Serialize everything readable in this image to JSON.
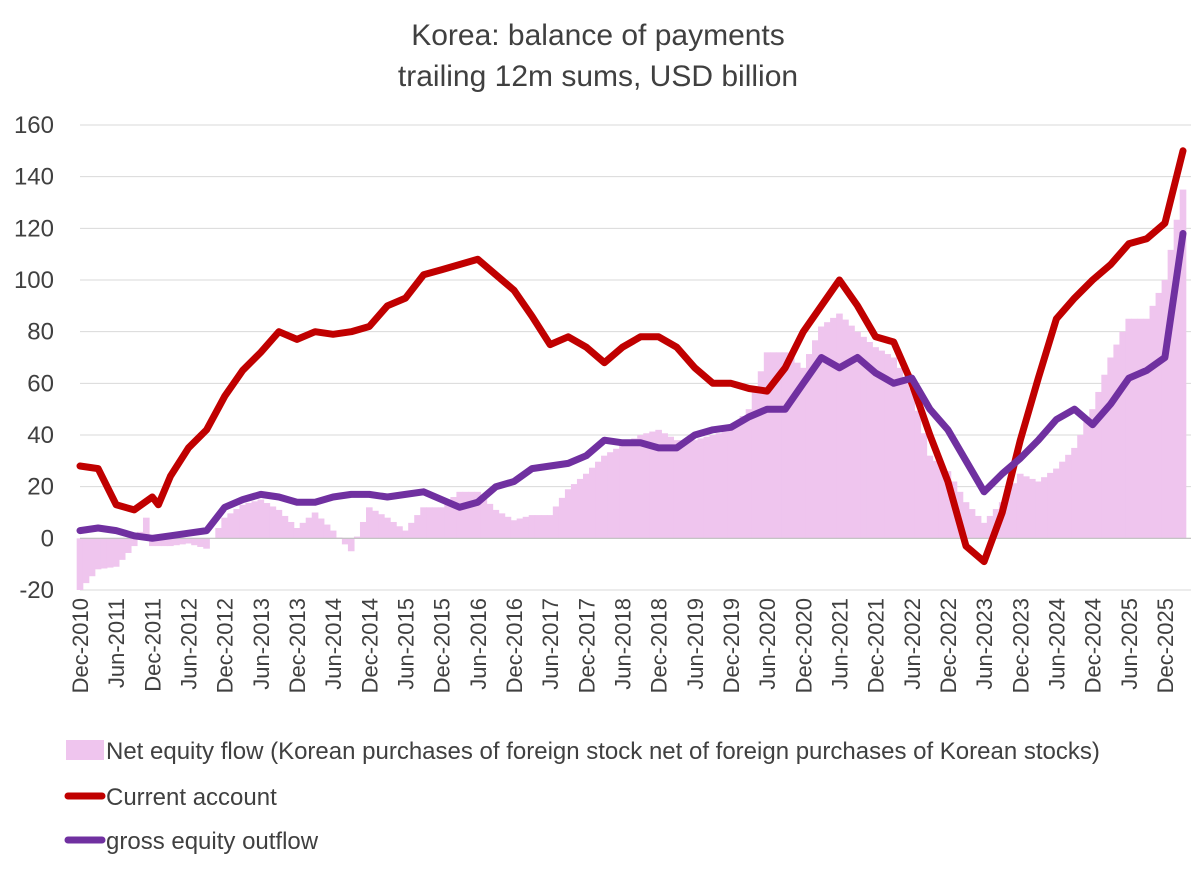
{
  "chart_data": {
    "type": "line",
    "title": "Korea: balance of payments",
    "subtitle": "trailing 12m sums, USD billion",
    "xlabel": "",
    "ylabel": "",
    "ylim": [
      -20,
      160
    ],
    "yticks": [
      "160",
      "140",
      "120",
      "100",
      "80",
      "60",
      "40",
      "20",
      "0",
      "-20"
    ],
    "grid": true,
    "legend_position": "bottom",
    "x_start": "Dec-2010",
    "x_end": "Mar-2026",
    "x_tick_labels": [
      "Dec-2010",
      "Jun-2011",
      "Dec-2011",
      "Jun-2012",
      "Dec-2012",
      "Jun-2013",
      "Dec-2013",
      "Jun-2014",
      "Dec-2014",
      "Jun-2015",
      "Dec-2015",
      "Jun-2016",
      "Dec-2016",
      "Jun-2017",
      "Dec-2017",
      "Jun-2018",
      "Dec-2018",
      "Jun-2019",
      "Dec-2019",
      "Jun-2020",
      "Dec-2020",
      "Jun-2021",
      "Dec-2021",
      "Jun-2022",
      "Dec-2022",
      "Jun-2023",
      "Dec-2023",
      "Jun-2024",
      "Dec-2024",
      "Jun-2025",
      "Dec-2025"
    ],
    "series": [
      {
        "name": "Net equity flow (Korean purchases of foreign stock net of foreign purchases of Korean stocks)",
        "type": "area",
        "color": "#efc5ee",
        "points": [
          [
            "Dec-2010",
            -20
          ],
          [
            "Mar-2011",
            -12
          ],
          [
            "Jun-2011",
            -11
          ],
          [
            "Sep-2011",
            -3
          ],
          [
            "Nov-2011",
            8
          ],
          [
            "Dec-2011",
            -3
          ],
          [
            "Mar-2012",
            -3
          ],
          [
            "Jun-2012",
            -2
          ],
          [
            "Sep-2012",
            -4
          ],
          [
            "Dec-2012",
            8
          ],
          [
            "Mar-2013",
            13
          ],
          [
            "Jun-2013",
            15
          ],
          [
            "Sep-2013",
            11
          ],
          [
            "Dec-2013",
            4
          ],
          [
            "Mar-2014",
            10
          ],
          [
            "Jun-2014",
            3
          ],
          [
            "Sep-2014",
            -5
          ],
          [
            "Dec-2014",
            12
          ],
          [
            "Mar-2015",
            8
          ],
          [
            "Jun-2015",
            3
          ],
          [
            "Sep-2015",
            12
          ],
          [
            "Dec-2015",
            12
          ],
          [
            "Mar-2016",
            18
          ],
          [
            "Jun-2016",
            18
          ],
          [
            "Sep-2016",
            11
          ],
          [
            "Dec-2016",
            7
          ],
          [
            "Mar-2017",
            9
          ],
          [
            "Jun-2017",
            9
          ],
          [
            "Sep-2017",
            19
          ],
          [
            "Dec-2017",
            25
          ],
          [
            "Mar-2018",
            32
          ],
          [
            "Jun-2018",
            36
          ],
          [
            "Sep-2018",
            40
          ],
          [
            "Dec-2018",
            42
          ],
          [
            "Mar-2019",
            38
          ],
          [
            "Jun-2019",
            38
          ],
          [
            "Sep-2019",
            40
          ],
          [
            "Dec-2019",
            42
          ],
          [
            "Mar-2020",
            50
          ],
          [
            "Jun-2020",
            72
          ],
          [
            "Sep-2020",
            72
          ],
          [
            "Dec-2020",
            66
          ],
          [
            "Mar-2021",
            82
          ],
          [
            "Jun-2021",
            87
          ],
          [
            "Sep-2021",
            80
          ],
          [
            "Dec-2021",
            74
          ],
          [
            "Mar-2022",
            70
          ],
          [
            "Jun-2022",
            58
          ],
          [
            "Sep-2022",
            32
          ],
          [
            "Dec-2022",
            26
          ],
          [
            "Mar-2023",
            14
          ],
          [
            "Jun-2023",
            6
          ],
          [
            "Sep-2023",
            14
          ],
          [
            "Dec-2023",
            25
          ],
          [
            "Mar-2024",
            22
          ],
          [
            "Jun-2024",
            27
          ],
          [
            "Sep-2024",
            35
          ],
          [
            "Dec-2024",
            50
          ],
          [
            "Mar-2025",
            70
          ],
          [
            "Jun-2025",
            85
          ],
          [
            "Sep-2025",
            85
          ],
          [
            "Dec-2025",
            100
          ],
          [
            "Mar-2026",
            135
          ]
        ]
      },
      {
        "name": "Current account",
        "type": "line",
        "color": "#c00000",
        "points": [
          [
            "Dec-2010",
            28
          ],
          [
            "Mar-2011",
            27
          ],
          [
            "Jun-2011",
            13
          ],
          [
            "Sep-2011",
            11
          ],
          [
            "Dec-2011",
            16
          ],
          [
            "Jan-2012",
            13
          ],
          [
            "Mar-2012",
            24
          ],
          [
            "Jun-2012",
            35
          ],
          [
            "Sep-2012",
            42
          ],
          [
            "Dec-2012",
            55
          ],
          [
            "Mar-2013",
            65
          ],
          [
            "Jun-2013",
            72
          ],
          [
            "Sep-2013",
            80
          ],
          [
            "Dec-2013",
            77
          ],
          [
            "Mar-2014",
            80
          ],
          [
            "Jun-2014",
            79
          ],
          [
            "Sep-2014",
            80
          ],
          [
            "Dec-2014",
            82
          ],
          [
            "Mar-2015",
            90
          ],
          [
            "Jun-2015",
            93
          ],
          [
            "Sep-2015",
            102
          ],
          [
            "Dec-2015",
            104
          ],
          [
            "Mar-2016",
            106
          ],
          [
            "Jun-2016",
            108
          ],
          [
            "Sep-2016",
            102
          ],
          [
            "Dec-2016",
            96
          ],
          [
            "Mar-2017",
            86
          ],
          [
            "Jun-2017",
            75
          ],
          [
            "Sep-2017",
            78
          ],
          [
            "Dec-2017",
            74
          ],
          [
            "Mar-2018",
            68
          ],
          [
            "Jun-2018",
            74
          ],
          [
            "Sep-2018",
            78
          ],
          [
            "Dec-2018",
            78
          ],
          [
            "Mar-2019",
            74
          ],
          [
            "Jun-2019",
            66
          ],
          [
            "Sep-2019",
            60
          ],
          [
            "Dec-2019",
            60
          ],
          [
            "Mar-2020",
            58
          ],
          [
            "Jun-2020",
            57
          ],
          [
            "Sep-2020",
            66
          ],
          [
            "Dec-2020",
            80
          ],
          [
            "Mar-2021",
            90
          ],
          [
            "Jun-2021",
            100
          ],
          [
            "Sep-2021",
            90
          ],
          [
            "Dec-2021",
            78
          ],
          [
            "Mar-2022",
            76
          ],
          [
            "Jun-2022",
            60
          ],
          [
            "Sep-2022",
            40
          ],
          [
            "Dec-2022",
            22
          ],
          [
            "Mar-2023",
            -3
          ],
          [
            "Jun-2023",
            -9
          ],
          [
            "Sep-2023",
            10
          ],
          [
            "Dec-2023",
            38
          ],
          [
            "Mar-2024",
            62
          ],
          [
            "Jun-2024",
            85
          ],
          [
            "Sep-2024",
            93
          ],
          [
            "Dec-2024",
            100
          ],
          [
            "Mar-2025",
            106
          ],
          [
            "Jun-2025",
            114
          ],
          [
            "Sep-2025",
            116
          ],
          [
            "Dec-2025",
            122
          ],
          [
            "Mar-2026",
            150
          ]
        ]
      },
      {
        "name": "gross equity outflow",
        "type": "line",
        "color": "#7030a0",
        "points": [
          [
            "Dec-2010",
            3
          ],
          [
            "Mar-2011",
            4
          ],
          [
            "Jun-2011",
            3
          ],
          [
            "Sep-2011",
            1
          ],
          [
            "Dec-2011",
            0
          ],
          [
            "Mar-2012",
            1
          ],
          [
            "Jun-2012",
            2
          ],
          [
            "Sep-2012",
            3
          ],
          [
            "Dec-2012",
            12
          ],
          [
            "Mar-2013",
            15
          ],
          [
            "Jun-2013",
            17
          ],
          [
            "Sep-2013",
            16
          ],
          [
            "Dec-2013",
            14
          ],
          [
            "Mar-2014",
            14
          ],
          [
            "Jun-2014",
            16
          ],
          [
            "Sep-2014",
            17
          ],
          [
            "Dec-2014",
            17
          ],
          [
            "Mar-2015",
            16
          ],
          [
            "Jun-2015",
            17
          ],
          [
            "Sep-2015",
            18
          ],
          [
            "Dec-2015",
            15
          ],
          [
            "Mar-2016",
            12
          ],
          [
            "Jun-2016",
            14
          ],
          [
            "Sep-2016",
            20
          ],
          [
            "Dec-2016",
            22
          ],
          [
            "Mar-2017",
            27
          ],
          [
            "Jun-2017",
            28
          ],
          [
            "Sep-2017",
            29
          ],
          [
            "Dec-2017",
            32
          ],
          [
            "Mar-2018",
            38
          ],
          [
            "Jun-2018",
            37
          ],
          [
            "Sep-2018",
            37
          ],
          [
            "Dec-2018",
            35
          ],
          [
            "Mar-2019",
            35
          ],
          [
            "Jun-2019",
            40
          ],
          [
            "Sep-2019",
            42
          ],
          [
            "Dec-2019",
            43
          ],
          [
            "Mar-2020",
            47
          ],
          [
            "Jun-2020",
            50
          ],
          [
            "Sep-2020",
            50
          ],
          [
            "Dec-2020",
            60
          ],
          [
            "Mar-2021",
            70
          ],
          [
            "Jun-2021",
            66
          ],
          [
            "Sep-2021",
            70
          ],
          [
            "Dec-2021",
            64
          ],
          [
            "Mar-2022",
            60
          ],
          [
            "Jun-2022",
            62
          ],
          [
            "Sep-2022",
            50
          ],
          [
            "Dec-2022",
            42
          ],
          [
            "Mar-2023",
            30
          ],
          [
            "Jun-2023",
            18
          ],
          [
            "Sep-2023",
            25
          ],
          [
            "Dec-2023",
            31
          ],
          [
            "Mar-2024",
            38
          ],
          [
            "Jun-2024",
            46
          ],
          [
            "Sep-2024",
            50
          ],
          [
            "Dec-2024",
            44
          ],
          [
            "Mar-2025",
            52
          ],
          [
            "Jun-2025",
            62
          ],
          [
            "Sep-2025",
            65
          ],
          [
            "Dec-2025",
            70
          ],
          [
            "Mar-2026",
            118
          ]
        ]
      }
    ]
  }
}
